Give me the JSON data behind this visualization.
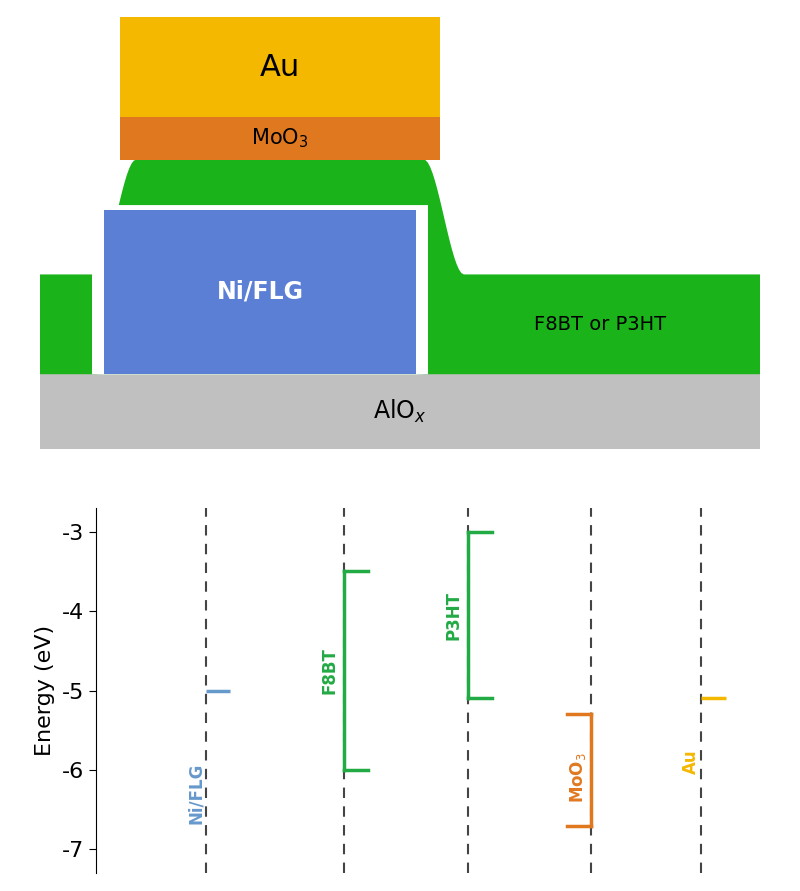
{
  "fig_width": 8.0,
  "fig_height": 8.91,
  "bg_color": "#ffffff",
  "device": {
    "alox_color": "#c0c0c0",
    "alox_label": "AlO$_x$",
    "green_color": "#1ab31a",
    "niflg_color": "#5b7fd4",
    "niflg_label": "Ni/FLG",
    "moo3_color": "#e07820",
    "moo3_label": "MoO$_3$",
    "au_color": "#f5b800",
    "au_label": "Au",
    "f8bt_label": "F8BT or P3HT"
  },
  "energy": {
    "ylabel": "Energy (eV)",
    "ylim": [
      -7.3,
      -2.7
    ],
    "yticks": [
      -3,
      -4,
      -5,
      -6,
      -7
    ],
    "niflg_wf": -5.0,
    "niflg_color": "#6699cc",
    "niflg_label": "Ni/FLG",
    "f8bt_homo": -6.0,
    "f8bt_lumo": -3.5,
    "f8bt_color": "#22aa44",
    "f8bt_label": "F8BT",
    "p3ht_homo": -5.1,
    "p3ht_lumo": -3.0,
    "p3ht_color": "#22aa44",
    "p3ht_label": "P3HT",
    "moo3_wf_low": -5.3,
    "moo3_wf_high": -6.7,
    "moo3_color": "#e07820",
    "moo3_label": "MoO$_3$",
    "au_wf": -5.1,
    "au_color": "#f5b800",
    "au_label": "Au",
    "col_niflg": 0.16,
    "col_f8bt": 0.36,
    "col_p3ht": 0.54,
    "col_moo3": 0.72,
    "col_au": 0.88,
    "dashed_line_color": "#444444"
  }
}
